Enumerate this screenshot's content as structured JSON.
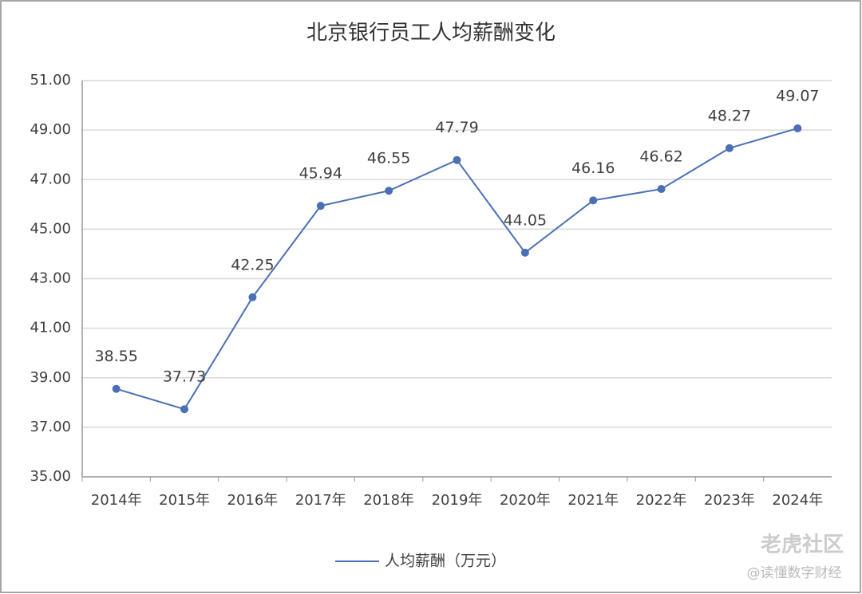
{
  "chart_data": {
    "type": "line",
    "title": "北京银行员工人均薪酬变化",
    "categories": [
      "2014年",
      "2015年",
      "2016年",
      "2017年",
      "2018年",
      "2019年",
      "2020年",
      "2021年",
      "2022年",
      "2023年",
      "2024年"
    ],
    "series": [
      {
        "name": "人均薪酬（万元）",
        "color": "#4a6fb5",
        "values": [
          38.55,
          37.73,
          42.25,
          45.94,
          46.55,
          47.79,
          44.05,
          46.16,
          46.62,
          48.27,
          49.07
        ]
      }
    ],
    "ylim": [
      35,
      51
    ],
    "yticks": [
      {
        "value": 35,
        "label": "35.00"
      },
      {
        "value": 37,
        "label": "37.00"
      },
      {
        "value": 39,
        "label": "39.00"
      },
      {
        "value": 41,
        "label": "41.00"
      },
      {
        "value": 43,
        "label": "43.00"
      },
      {
        "value": 45,
        "label": "45.00"
      },
      {
        "value": 47,
        "label": "47.00"
      },
      {
        "value": 49,
        "label": "49.00"
      },
      {
        "value": 51,
        "label": "51.00"
      }
    ],
    "grid": true,
    "legend": "bottom"
  },
  "watermark": [
    "老虎社区",
    "@读懂数字财经"
  ]
}
